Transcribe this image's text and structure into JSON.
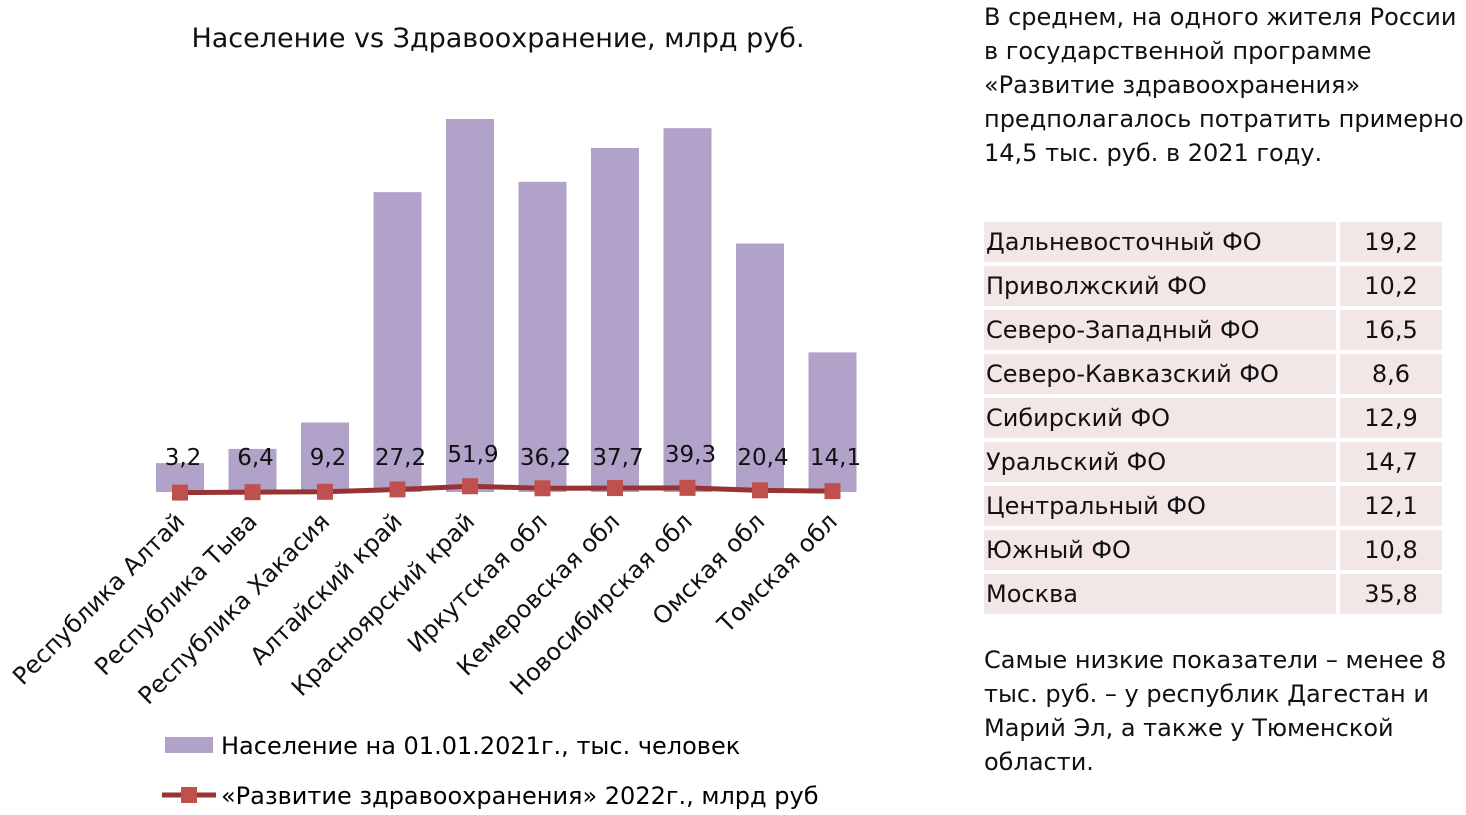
{
  "chart_data": {
    "type": "bar+line",
    "title": "Население vs Здравоохранение, млрд руб.",
    "categories": [
      "Республика Алтай",
      "Республика Тыва",
      "Республика Хакасия",
      "Алтайский край",
      "Красноярский край",
      "Иркутская обл",
      "Кемеровская обл",
      "Новосибирская обл",
      "Омская обл",
      "Томская обл"
    ],
    "series": [
      {
        "name": "Население на 01.01.2021г., тыс. человек",
        "type": "bar",
        "color": "#b1a2c9",
        "values": [
          221,
          330,
          532,
          2296,
          2856,
          2375,
          2634,
          2786,
          1903,
          1069
        ]
      },
      {
        "name": "«Развитие здравоохранения» 2022г., млрд руб",
        "type": "line",
        "color": "#983333",
        "marker_color": "#c0504d",
        "values": [
          3.2,
          6.4,
          9.2,
          27.2,
          51.9,
          36.2,
          37.7,
          39.3,
          20.4,
          14.1
        ]
      }
    ],
    "data_labels": [
      "3,2",
      "6,4",
      "9,2",
      "27,2",
      "51,9",
      "36,2",
      "37,7",
      "39,3",
      "20,4",
      "14,1"
    ],
    "y_axis_visible": false,
    "grid": false,
    "legend_position": "bottom"
  },
  "side": {
    "intro": "В среднем, на одного жителя России в государственной программе «Развитие здравоохранения» предполагалось потратить примерно 14,5 тыс. руб. в 2021 году.",
    "table": [
      {
        "name": "Дальневосточный ФО",
        "value": "19,2"
      },
      {
        "name": "Приволжский ФО",
        "value": "10,2"
      },
      {
        "name": "Северо-Западный ФО",
        "value": "16,5"
      },
      {
        "name": "Северо-Кавказский ФО",
        "value": "8,6"
      },
      {
        "name": "Сибирский ФО",
        "value": "12,9"
      },
      {
        "name": "Уральский ФО",
        "value": "14,7"
      },
      {
        "name": "Центральный ФО",
        "value": "12,1"
      },
      {
        "name": "Южный ФО",
        "value": "10,8"
      },
      {
        "name": "Москва",
        "value": "35,8"
      }
    ],
    "outro": "Самые низкие показатели – менее 8 тыс. руб. – у республик Дагестан и Марий Эл, а также у Тюменской области."
  }
}
